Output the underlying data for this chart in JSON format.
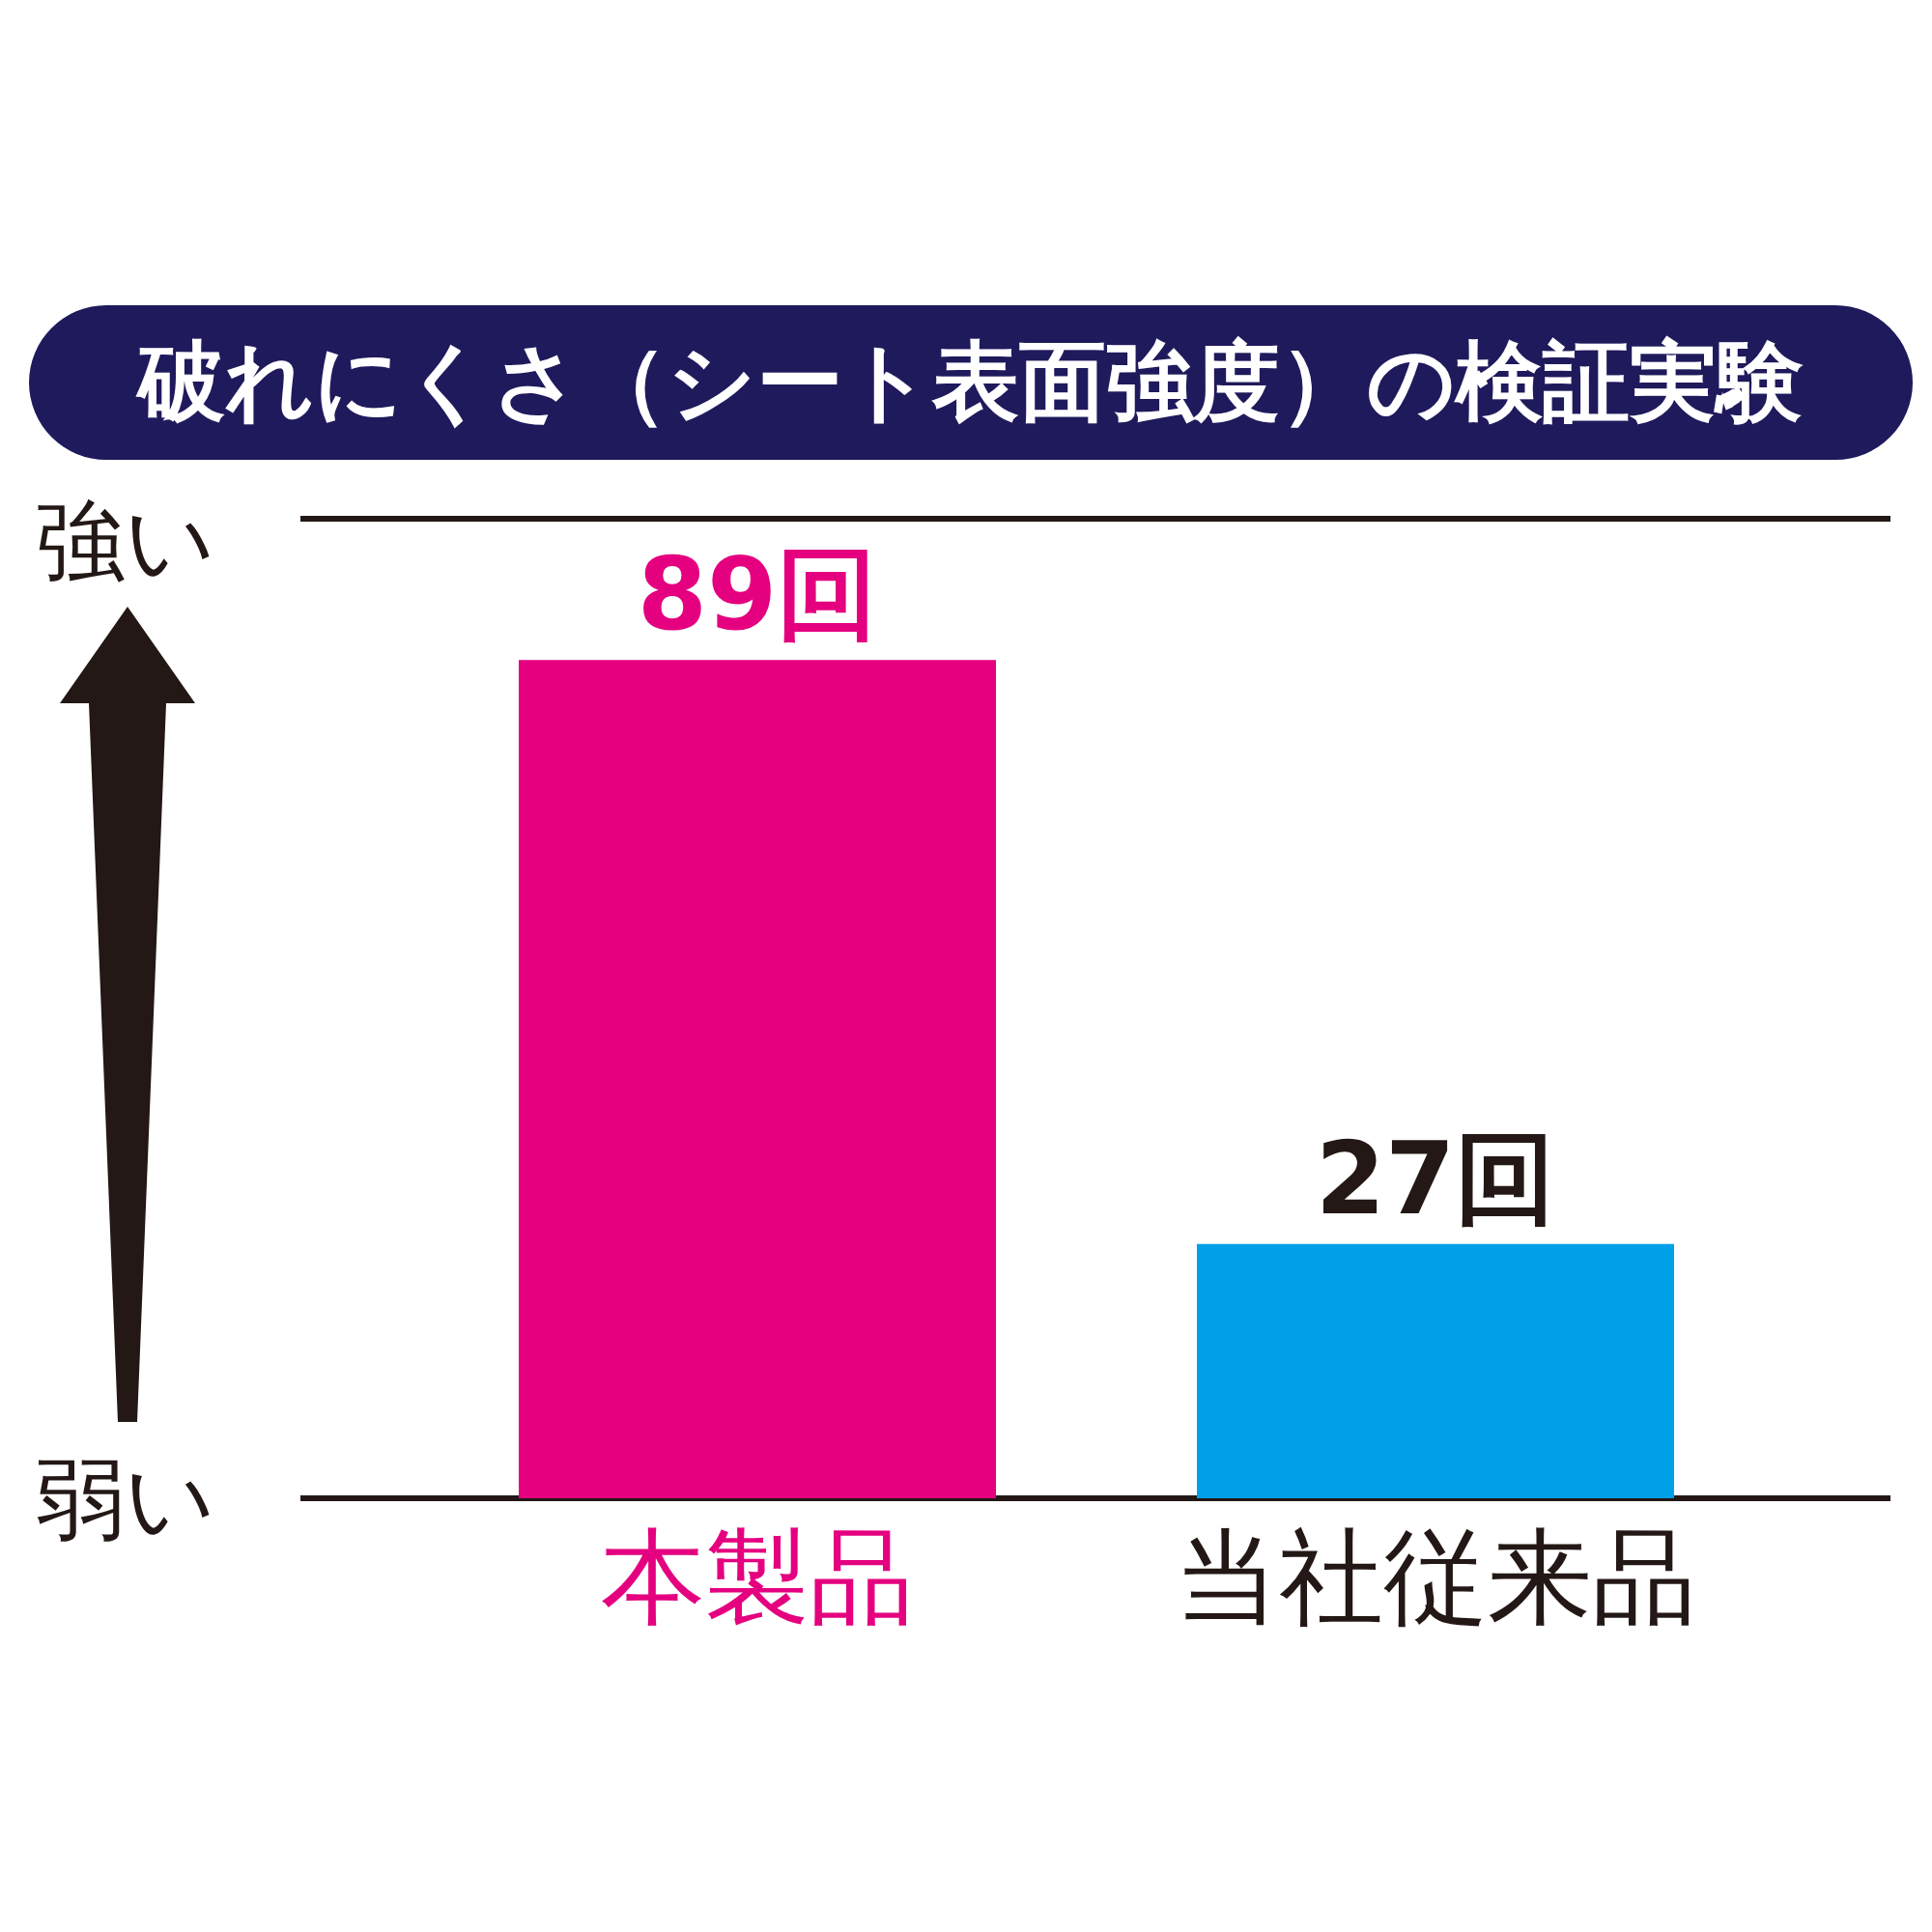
{
  "chart_data": {
    "type": "bar",
    "title": "破れにくさ（シート表面強度）の検証実験",
    "categories": [
      "本製品",
      "当社従来品"
    ],
    "values": [
      89,
      27
    ],
    "colors": [
      "#e4007f",
      "#00a0e9"
    ],
    "value_labels": [
      "89回",
      "27回"
    ],
    "ylim": [
      0,
      104
    ],
    "annotations": [
      "強い",
      "弱い"
    ]
  }
}
